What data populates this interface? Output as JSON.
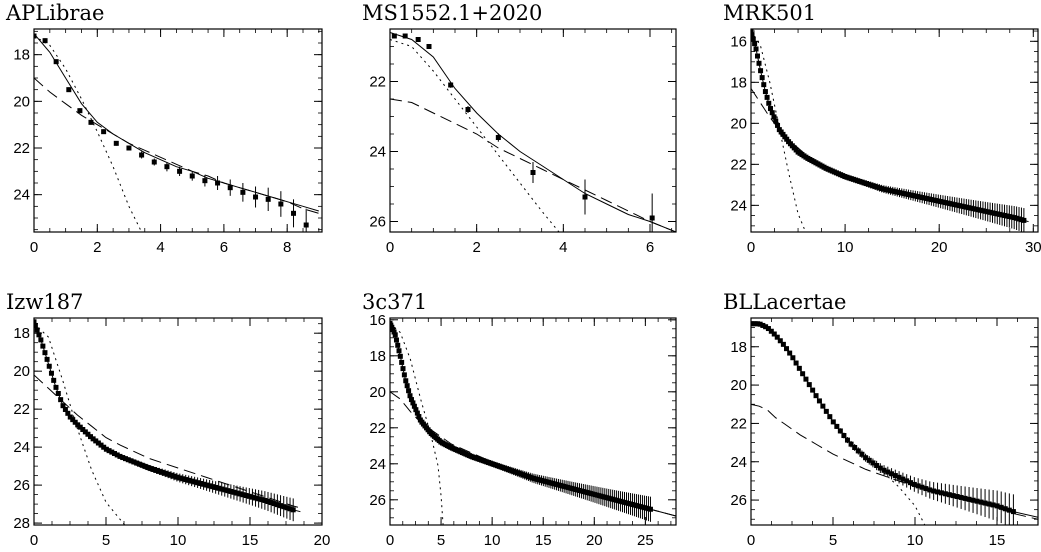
{
  "chart_data": [
    {
      "type": "scatter",
      "title": "APLibrae",
      "xlim": [
        0,
        9.1
      ],
      "ylim": [
        25.6,
        16.9
      ],
      "xticks": [
        0,
        2,
        4,
        6,
        8
      ],
      "yticks": [
        18,
        20,
        22,
        24
      ],
      "grid": false,
      "points": [
        [
          0.0,
          17.2
        ],
        [
          0.35,
          17.4
        ],
        [
          0.7,
          18.3
        ],
        [
          1.1,
          19.5
        ],
        [
          1.45,
          20.4
        ],
        [
          1.8,
          20.9
        ],
        [
          2.2,
          21.3
        ],
        [
          2.6,
          21.8
        ],
        [
          3.0,
          22.0
        ],
        [
          3.4,
          22.3
        ],
        [
          3.8,
          22.6
        ],
        [
          4.2,
          22.8
        ],
        [
          4.6,
          23.0
        ],
        [
          5.0,
          23.2
        ],
        [
          5.4,
          23.4
        ],
        [
          5.8,
          23.5
        ],
        [
          6.2,
          23.7
        ],
        [
          6.6,
          23.9
        ],
        [
          7.0,
          24.1
        ],
        [
          7.4,
          24.2
        ],
        [
          7.8,
          24.4
        ],
        [
          8.2,
          24.8
        ],
        [
          8.6,
          25.3
        ]
      ],
      "errors": [
        0.1,
        0.1,
        0.1,
        0.1,
        0.1,
        0.1,
        0.1,
        0.1,
        0.1,
        0.15,
        0.15,
        0.2,
        0.2,
        0.2,
        0.25,
        0.3,
        0.35,
        0.4,
        0.45,
        0.5,
        0.55,
        0.6,
        0.7
      ],
      "series": [
        {
          "style": "solid",
          "x": [
            0,
            0.5,
            1,
            1.5,
            2,
            2.5,
            3,
            3.5,
            4,
            4.5,
            5,
            5.5,
            6,
            6.5,
            7,
            7.5,
            8,
            8.5,
            9
          ],
          "y": [
            17.1,
            17.9,
            19.0,
            20.1,
            20.9,
            21.4,
            21.8,
            22.2,
            22.5,
            22.8,
            23.0,
            23.3,
            23.5,
            23.7,
            23.9,
            24.1,
            24.3,
            24.5,
            24.7
          ]
        },
        {
          "style": "dashed",
          "x": [
            0,
            0.5,
            1,
            1.5,
            2,
            2.5,
            3,
            3.5,
            4,
            4.5,
            5,
            5.5,
            6,
            6.5,
            7,
            7.5,
            8,
            8.5,
            9
          ],
          "y": [
            19.0,
            19.6,
            20.1,
            20.6,
            21.0,
            21.4,
            21.8,
            22.1,
            22.4,
            22.7,
            23.0,
            23.2,
            23.5,
            23.7,
            23.9,
            24.1,
            24.3,
            24.6,
            24.8
          ]
        },
        {
          "style": "dotted",
          "x": [
            0,
            0.5,
            1,
            1.5,
            2,
            2.5,
            3,
            3.4
          ],
          "y": [
            17.2,
            17.6,
            18.6,
            19.9,
            21.3,
            22.8,
            24.5,
            25.6
          ]
        }
      ]
    },
    {
      "type": "scatter",
      "title": "MS1552.1+2020",
      "xlim": [
        0,
        6.6
      ],
      "ylim": [
        26.3,
        20.5
      ],
      "xticks": [
        0,
        2,
        4,
        6
      ],
      "yticks": [
        22,
        24,
        26
      ],
      "grid": false,
      "points": [
        [
          0.1,
          20.7
        ],
        [
          0.35,
          20.7
        ],
        [
          0.65,
          20.8
        ],
        [
          0.9,
          21.0
        ],
        [
          1.4,
          22.1
        ],
        [
          1.8,
          22.8
        ],
        [
          2.5,
          23.6
        ],
        [
          3.3,
          24.6
        ],
        [
          4.5,
          25.3
        ],
        [
          6.05,
          25.9
        ]
      ],
      "errors": [
        0.05,
        0.05,
        0.05,
        0.05,
        0.08,
        0.1,
        0.12,
        0.3,
        0.5,
        0.7
      ],
      "series": [
        {
          "style": "solid",
          "x": [
            0,
            0.5,
            1,
            1.5,
            2,
            2.5,
            3,
            3.5,
            4,
            4.5,
            5,
            5.5,
            6,
            6.6
          ],
          "y": [
            20.6,
            20.8,
            21.3,
            22.2,
            22.9,
            23.5,
            24.0,
            24.4,
            24.8,
            25.2,
            25.5,
            25.8,
            26.0,
            26.3
          ]
        },
        {
          "style": "dashed",
          "x": [
            0,
            0.5,
            1,
            1.5,
            2,
            2.5,
            3,
            3.5,
            4,
            4.5,
            5,
            5.5,
            6,
            6.6
          ],
          "y": [
            22.5,
            22.6,
            22.9,
            23.2,
            23.5,
            23.9,
            24.2,
            24.5,
            24.8,
            25.1,
            25.4,
            25.7,
            26.0,
            26.3
          ]
        },
        {
          "style": "dotted",
          "x": [
            0,
            0.5,
            1,
            1.5,
            2,
            2.5,
            3,
            3.5,
            3.9
          ],
          "y": [
            20.8,
            21.0,
            21.7,
            22.5,
            23.3,
            24.1,
            24.9,
            25.7,
            26.3
          ]
        }
      ]
    },
    {
      "type": "scatter",
      "title": "MRK501",
      "xlim": [
        0,
        30.5
      ],
      "ylim": [
        25.3,
        15.4
      ],
      "xticks": [
        0,
        10,
        20,
        30
      ],
      "yticks": [
        16,
        18,
        20,
        22,
        24
      ],
      "grid": false,
      "series": [
        {
          "style": "solid",
          "x": [
            0,
            0.5,
            1,
            1.5,
            2,
            3,
            4,
            5,
            6,
            8,
            10,
            12,
            14,
            16,
            18,
            20,
            22,
            24,
            26,
            28,
            29.5
          ],
          "y": [
            15.5,
            16.3,
            17.4,
            18.4,
            19.2,
            20.3,
            20.9,
            21.4,
            21.7,
            22.2,
            22.6,
            22.9,
            23.2,
            23.4,
            23.6,
            23.8,
            24.0,
            24.2,
            24.4,
            24.6,
            24.8
          ]
        },
        {
          "style": "dashed",
          "x": [
            0,
            1,
            2,
            3,
            4,
            5,
            6,
            8,
            10,
            12,
            14,
            16,
            18,
            20,
            22,
            24,
            26,
            28,
            29.5
          ],
          "y": [
            18.3,
            19.0,
            19.7,
            20.3,
            20.8,
            21.2,
            21.6,
            22.1,
            22.5,
            22.9,
            23.2,
            23.4,
            23.6,
            23.8,
            24.0,
            24.2,
            24.4,
            24.6,
            24.8
          ]
        },
        {
          "style": "dotted",
          "x": [
            0,
            1,
            2,
            3,
            4,
            5,
            5.8
          ],
          "y": [
            15.5,
            16.2,
            18.0,
            20.2,
            22.4,
            24.4,
            25.3
          ]
        }
      ],
      "points_from_series": 0,
      "point_range": [
        0,
        29
      ],
      "point_count": 130,
      "error_growth": [
        0.05,
        0.6
      ]
    },
    {
      "type": "scatter",
      "title": "Izw187",
      "xlim": [
        0,
        20
      ],
      "ylim": [
        28.1,
        17.2
      ],
      "xticks": [
        0,
        5,
        10,
        15,
        20
      ],
      "yticks": [
        18,
        20,
        22,
        24,
        26,
        28
      ],
      "grid": false,
      "series": [
        {
          "style": "solid",
          "x": [
            0,
            0.5,
            1,
            1.5,
            2,
            2.5,
            3,
            4,
            5,
            6,
            7,
            8,
            10,
            12,
            14,
            16,
            18,
            18.5
          ],
          "y": [
            17.4,
            18.4,
            19.6,
            20.8,
            21.8,
            22.4,
            22.8,
            23.5,
            24.1,
            24.5,
            24.8,
            25.1,
            25.6,
            26.0,
            26.4,
            26.8,
            27.3,
            27.4
          ]
        },
        {
          "style": "dashed",
          "x": [
            0,
            1,
            2,
            3,
            4,
            5,
            6,
            8,
            10,
            12,
            14,
            16,
            18,
            18.5
          ],
          "y": [
            20.2,
            20.9,
            21.6,
            22.3,
            22.9,
            23.5,
            23.9,
            24.6,
            25.1,
            25.6,
            26.1,
            26.6,
            27.1,
            27.2
          ]
        },
        {
          "style": "dotted",
          "x": [
            0,
            1,
            2,
            3,
            4,
            5,
            6.3
          ],
          "y": [
            17.5,
            18.2,
            20.5,
            23.0,
            25.2,
            26.9,
            28.1
          ]
        }
      ],
      "points_from_series": 0,
      "point_range": [
        0,
        18
      ],
      "point_count": 95,
      "error_growth": [
        0.05,
        0.6
      ]
    },
    {
      "type": "scatter",
      "title": "3c371",
      "xlim": [
        0,
        28
      ],
      "ylim": [
        27.4,
        15.9
      ],
      "xticks": [
        0,
        5,
        10,
        15,
        20,
        25
      ],
      "yticks": [
        16,
        18,
        20,
        22,
        24,
        26
      ],
      "grid": false,
      "series": [
        {
          "style": "solid",
          "x": [
            0,
            0.5,
            1,
            1.5,
            2,
            3,
            4,
            5,
            6,
            8,
            10,
            12,
            14,
            16,
            18,
            20,
            22,
            24,
            26,
            28
          ],
          "y": [
            16.2,
            16.8,
            18.0,
            19.3,
            20.3,
            21.6,
            22.3,
            22.8,
            23.1,
            23.6,
            24.0,
            24.4,
            24.8,
            25.1,
            25.4,
            25.7,
            26.0,
            26.3,
            26.6,
            26.9
          ]
        },
        {
          "style": "dashed",
          "x": [
            0,
            1,
            2,
            3,
            4,
            5,
            6,
            8,
            10,
            12,
            14,
            16,
            18,
            20,
            22,
            24,
            26,
            28
          ],
          "y": [
            20.0,
            20.4,
            21.1,
            21.7,
            22.1,
            22.5,
            22.9,
            23.4,
            23.9,
            24.3,
            24.7,
            25.1,
            25.4,
            25.7,
            26.0,
            26.3,
            26.6,
            26.9
          ]
        },
        {
          "style": "dotted",
          "x": [
            0,
            1,
            2,
            3,
            4,
            4.7,
            5.0,
            5.2
          ],
          "y": [
            16.2,
            16.7,
            18.2,
            20.4,
            22.4,
            24.1,
            25.8,
            27.4
          ]
        }
      ],
      "points_from_series": 0,
      "point_range": [
        0,
        25.5
      ],
      "point_count": 150,
      "error_growth": [
        0.05,
        0.7
      ]
    },
    {
      "type": "scatter",
      "title": "BLLacertae",
      "xlim": [
        0,
        17.5
      ],
      "ylim": [
        27.3,
        16.5
      ],
      "xticks": [
        0,
        5,
        10,
        15
      ],
      "yticks": [
        18,
        20,
        22,
        24,
        26
      ],
      "grid": false,
      "series": [
        {
          "style": "solid",
          "x": [
            0,
            0.5,
            1,
            1.5,
            2,
            2.5,
            3,
            3.5,
            4,
            5,
            6,
            7,
            8,
            9,
            10,
            11,
            12,
            13,
            14,
            15,
            16,
            17.5
          ],
          "y": [
            16.8,
            16.8,
            17.0,
            17.4,
            17.9,
            18.5,
            19.2,
            19.9,
            20.6,
            21.9,
            23.0,
            23.8,
            24.4,
            24.8,
            25.2,
            25.5,
            25.7,
            25.9,
            26.1,
            26.3,
            26.6,
            26.9
          ]
        },
        {
          "style": "dashed",
          "x": [
            0,
            0.5,
            1,
            1.5,
            2,
            3,
            4,
            5,
            6,
            7,
            8,
            9,
            10,
            11,
            12,
            13,
            14,
            15,
            16,
            17.5
          ],
          "y": [
            21.0,
            21.1,
            21.3,
            21.7,
            22.0,
            22.6,
            23.1,
            23.6,
            24.0,
            24.4,
            24.7,
            25.0,
            25.3,
            25.5,
            25.8,
            26.0,
            26.2,
            26.4,
            26.7,
            27.0
          ]
        },
        {
          "style": "dotted",
          "x": [
            0,
            1,
            2,
            3,
            4,
            5,
            6,
            7,
            8,
            9,
            10,
            10.6
          ],
          "y": [
            16.8,
            17.0,
            17.9,
            19.2,
            20.6,
            21.9,
            23.0,
            23.8,
            24.5,
            25.3,
            26.3,
            27.3
          ]
        }
      ],
      "points_from_series": 0,
      "point_range": [
        0,
        16
      ],
      "point_count": 75,
      "error_growth": [
        0.03,
        0.9
      ]
    }
  ]
}
